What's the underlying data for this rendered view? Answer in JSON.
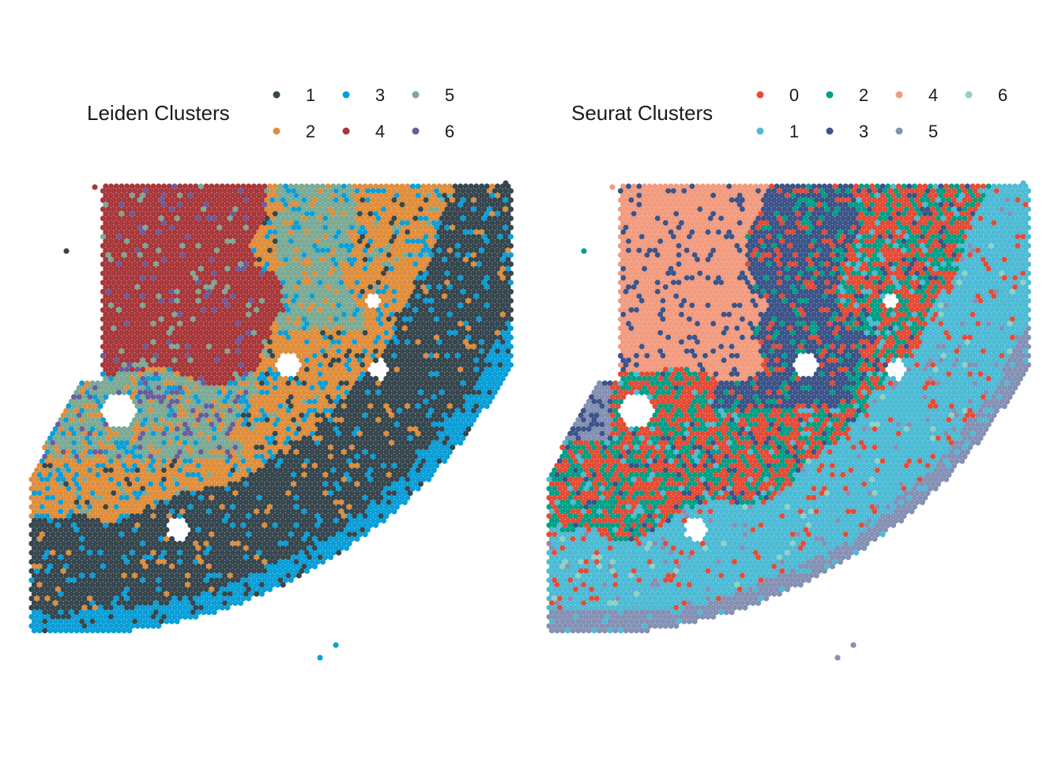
{
  "chart_data": [
    {
      "type": "scatter",
      "title": "",
      "legend_title": "Leiden Clusters",
      "legend_position": "top",
      "grid": false,
      "axes": false,
      "series": [
        {
          "name": "1",
          "color": "#37474F"
        },
        {
          "name": "2",
          "color": "#E08E3C"
        },
        {
          "name": "3",
          "color": "#0A9FD8"
        },
        {
          "name": "4",
          "color": "#A8383B"
        },
        {
          "name": "5",
          "color": "#7BAA95"
        },
        {
          "name": "6",
          "color": "#6A5D9E"
        }
      ]
    },
    {
      "type": "scatter",
      "title": "",
      "legend_title": "Seurat Clusters",
      "legend_position": "top",
      "grid": false,
      "axes": false,
      "series": [
        {
          "name": "0",
          "color": "#E64B35"
        },
        {
          "name": "1",
          "color": "#4DBBD5"
        },
        {
          "name": "2",
          "color": "#00A087"
        },
        {
          "name": "3",
          "color": "#3C5488"
        },
        {
          "name": "4",
          "color": "#F39B7F"
        },
        {
          "name": "5",
          "color": "#8491B4"
        },
        {
          "name": "6",
          "color": "#91D1C2"
        }
      ]
    }
  ]
}
